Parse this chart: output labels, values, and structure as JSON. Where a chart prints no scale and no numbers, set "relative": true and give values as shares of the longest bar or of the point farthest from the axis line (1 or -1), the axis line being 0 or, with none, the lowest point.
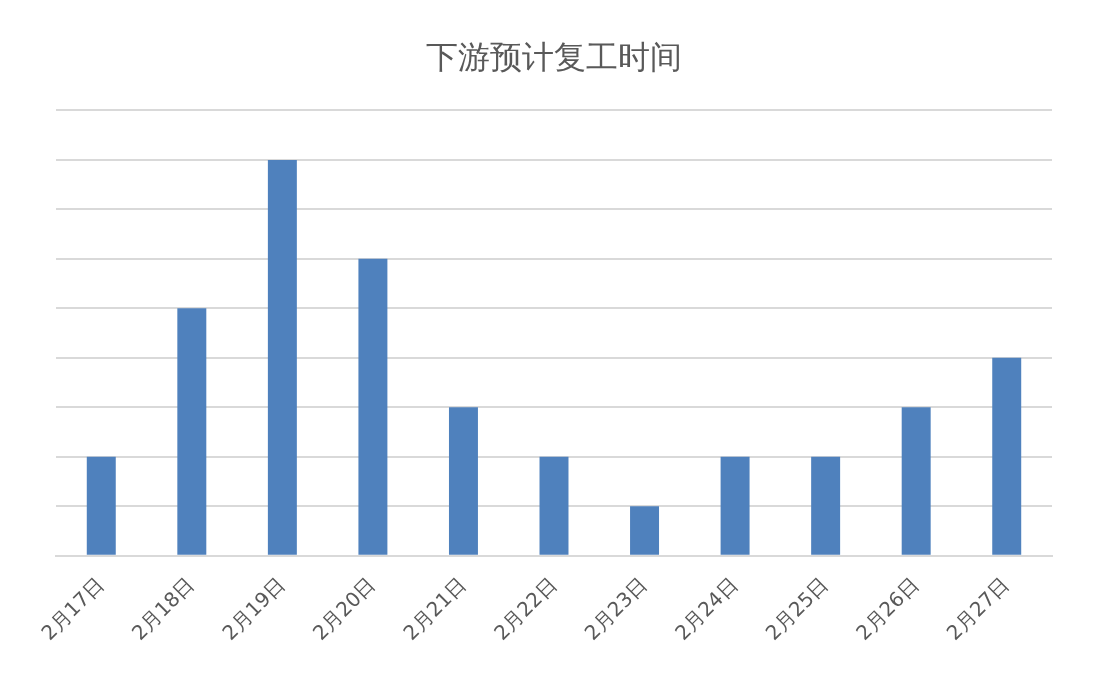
{
  "chart_data": {
    "type": "bar",
    "title": "下游预计复工时间",
    "categories": [
      "2月17日",
      "2月18日",
      "2月19日",
      "2月20日",
      "2月21日",
      "2月22日",
      "2月23日",
      "2月24日",
      "2月25日",
      "2月26日",
      "2月27日"
    ],
    "values": [
      0.25,
      0.625,
      1,
      0.75,
      0.375,
      0.25,
      0.125,
      0.25,
      0.25,
      0.375,
      0.5
    ],
    "color": "#4f81bd",
    "relative": true,
    "grid": "y"
  }
}
